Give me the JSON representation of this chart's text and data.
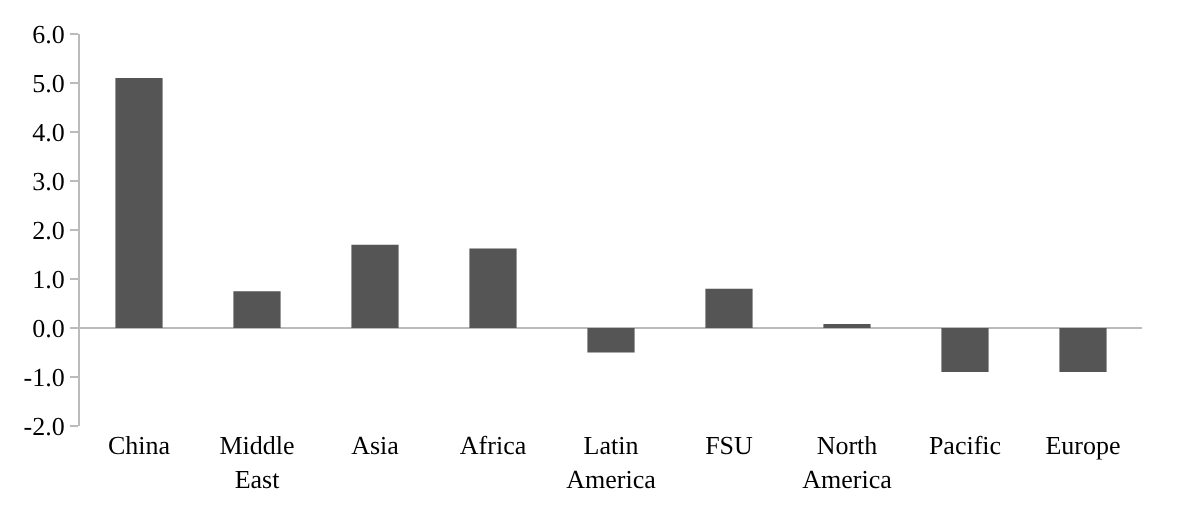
{
  "chart_data": {
    "type": "bar",
    "categories": [
      "China",
      "Middle East",
      "Asia",
      "Africa",
      "Latin America",
      "FSU",
      "North America",
      "Pacific",
      "Europe"
    ],
    "values": [
      5.1,
      0.75,
      1.7,
      1.62,
      -0.5,
      0.8,
      0.05,
      -0.9,
      -0.9
    ],
    "color": "#555555",
    "ylim": [
      -2.0,
      6.0
    ],
    "yticks": [
      {
        "value": -2,
        "label": "-2.0"
      },
      {
        "value": -1,
        "label": "-1.0"
      },
      {
        "value": 0,
        "label": "0.0"
      },
      {
        "value": 1,
        "label": "1.0"
      },
      {
        "value": 2,
        "label": "2.0"
      },
      {
        "value": 3,
        "label": "3.0"
      },
      {
        "value": 4,
        "label": "4.0"
      },
      {
        "value": 5,
        "label": "5.0"
      },
      {
        "value": 6,
        "label": "6.0"
      }
    ]
  }
}
